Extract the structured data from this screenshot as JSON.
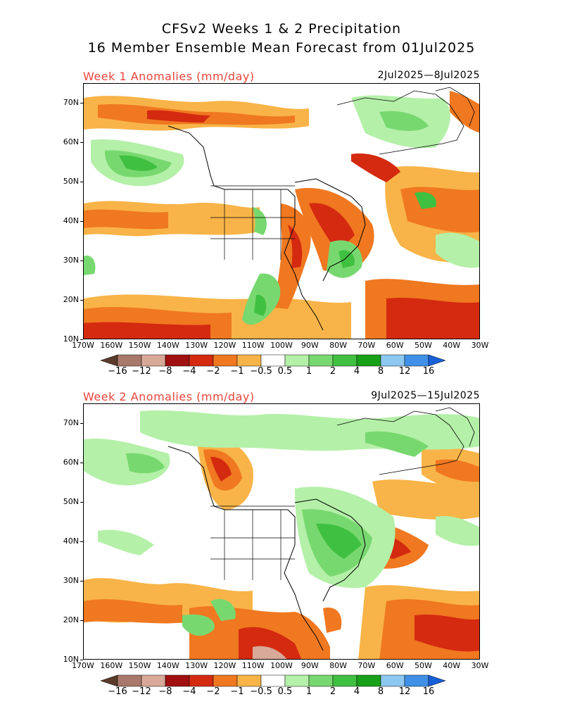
{
  "title": {
    "line1": "CFSv2 Weeks 1 & 2 Precipitation",
    "line2": "16 Member Ensemble Mean Forecast from 01Jul2025"
  },
  "panels": [
    {
      "label": "Week 1 Anomalies (mm/day)",
      "dates": "2Jul2025—8Jul2025"
    },
    {
      "label": "Week 2 Anomalies (mm/day)",
      "dates": "9Jul2025—15Jul2025"
    }
  ],
  "axes": {
    "lat_labels": [
      "70N",
      "60N",
      "50N",
      "40N",
      "30N",
      "20N",
      "10N"
    ],
    "lon_labels": [
      "170W",
      "160W",
      "150W",
      "140W",
      "130W",
      "120W",
      "110W",
      "100W",
      "90W",
      "80W",
      "70W",
      "60W",
      "50W",
      "40W",
      "30W"
    ]
  },
  "colorbar": {
    "labels": [
      "−16",
      "−12",
      "−8",
      "−4",
      "−2",
      "−1",
      "−0.5",
      "0.5",
      "1",
      "2",
      "4",
      "8",
      "12",
      "16"
    ],
    "colors": [
      "#5a3a2a",
      "#a8786a",
      "#d8a898",
      "#a01010",
      "#d42a10",
      "#f07820",
      "#f8b448",
      "#ffffff",
      "#b4f0a8",
      "#78d870",
      "#40c040",
      "#18a018",
      "#8cc8f0",
      "#4090e8",
      "#1860d8"
    ]
  }
}
